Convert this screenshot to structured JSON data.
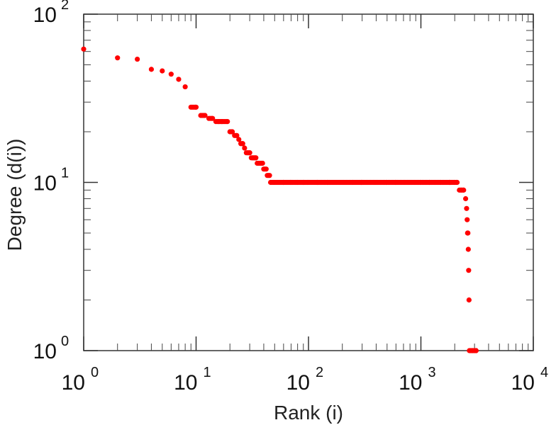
{
  "chart_data": {
    "type": "scatter",
    "title": "",
    "xlabel": "Rank (i)",
    "ylabel": "Degree (d(i))",
    "xscale": "log",
    "yscale": "log",
    "xlim": [
      1,
      10000
    ],
    "ylim": [
      1,
      100
    ],
    "grid": false,
    "marker_color": "#ff0000",
    "x_ticks": [
      {
        "base": "10",
        "exp": "0"
      },
      {
        "base": "10",
        "exp": "1"
      },
      {
        "base": "10",
        "exp": "2"
      },
      {
        "base": "10",
        "exp": "3"
      },
      {
        "base": "10",
        "exp": "4"
      }
    ],
    "y_ticks": [
      {
        "base": "10",
        "exp": "0"
      },
      {
        "base": "10",
        "exp": "1"
      },
      {
        "base": "10",
        "exp": "2"
      }
    ],
    "series": [
      {
        "points": [
          [
            1,
            62
          ],
          [
            2,
            55
          ],
          [
            3,
            54
          ],
          [
            4,
            47
          ],
          [
            5,
            46
          ],
          [
            6,
            44
          ],
          [
            7,
            41
          ],
          [
            8,
            37
          ],
          [
            9,
            28
          ],
          [
            10,
            28
          ],
          [
            11,
            25
          ],
          [
            12,
            25
          ],
          [
            13,
            24
          ],
          [
            14,
            24
          ],
          [
            15,
            23
          ],
          [
            16,
            23
          ],
          [
            17,
            23
          ],
          [
            18,
            23
          ],
          [
            19,
            23
          ],
          [
            20,
            20
          ],
          [
            21,
            20
          ],
          [
            22,
            19
          ],
          [
            23,
            19
          ],
          [
            24,
            18
          ],
          [
            25,
            17
          ],
          [
            26,
            17
          ],
          [
            27,
            16
          ],
          [
            28,
            15
          ],
          [
            29,
            15
          ],
          [
            30,
            15
          ],
          [
            31,
            14
          ],
          [
            32,
            14
          ],
          [
            33,
            14
          ],
          [
            34,
            14
          ],
          [
            35,
            13
          ],
          [
            36,
            13
          ],
          [
            37,
            13
          ],
          [
            38,
            13
          ],
          [
            39,
            13
          ],
          [
            40,
            12
          ],
          [
            41,
            12
          ],
          [
            42,
            12
          ],
          [
            43,
            11
          ],
          [
            44,
            11
          ],
          [
            45,
            11
          ],
          [
            46,
            10
          ],
          [
            50,
            10
          ],
          [
            60,
            10
          ],
          [
            70,
            10
          ],
          [
            80,
            10
          ],
          [
            90,
            10
          ],
          [
            100,
            10
          ],
          [
            120,
            10
          ],
          [
            150,
            10
          ],
          [
            200,
            10
          ],
          [
            250,
            10
          ],
          [
            300,
            10
          ],
          [
            400,
            10
          ],
          [
            500,
            10
          ],
          [
            600,
            10
          ],
          [
            800,
            10
          ],
          [
            1000,
            10
          ],
          [
            1200,
            10
          ],
          [
            1500,
            10
          ],
          [
            1800,
            10
          ],
          [
            2000,
            10
          ],
          [
            2100,
            10
          ],
          [
            2200,
            9
          ],
          [
            2300,
            9
          ],
          [
            2400,
            9
          ],
          [
            2500,
            8
          ],
          [
            2550,
            7
          ],
          [
            2580,
            6
          ],
          [
            2600,
            5
          ],
          [
            2620,
            5
          ],
          [
            2640,
            4
          ],
          [
            2660,
            3
          ],
          [
            2680,
            2
          ],
          [
            2700,
            1
          ],
          [
            2800,
            1
          ],
          [
            2900,
            1
          ],
          [
            3000,
            1
          ],
          [
            3100,
            1
          ]
        ]
      }
    ]
  }
}
